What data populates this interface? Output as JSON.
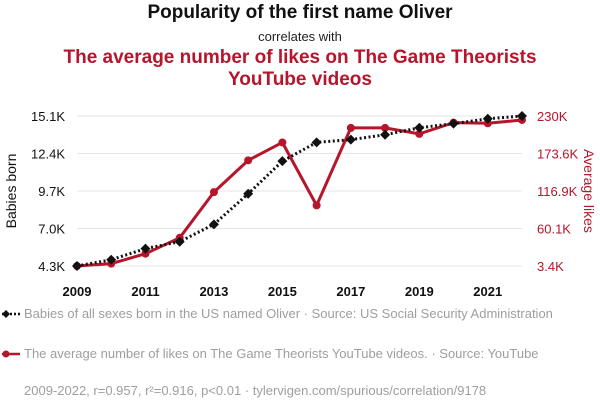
{
  "header": {
    "title": "Popularity of the first name Oliver",
    "subtitle": "correlates with",
    "title2": "The average number of likes on The Game Theorists YouTube videos"
  },
  "legend": {
    "item1": "Babies of all sexes born in the US named Oliver · Source: US Social Security Administration",
    "item2": "The average number of likes on The Game Theorists YouTube videos. · Source: YouTube"
  },
  "footer": "2009-2022, r=0.957, r²=0.916, p<0.01 · tylervigen.com/spurious/correlation/9178",
  "colors": {
    "series1": "#111111",
    "series2": "#b5162b",
    "grid": "#e6e6e6"
  },
  "chart_data": {
    "type": "line",
    "x": [
      2009,
      2010,
      2011,
      2012,
      2013,
      2014,
      2015,
      2016,
      2017,
      2018,
      2019,
      2020,
      2021,
      2022
    ],
    "x_ticks": [
      "2009",
      "2011",
      "2013",
      "2015",
      "2017",
      "2019",
      "2021"
    ],
    "xlim": [
      2009,
      2022
    ],
    "left_axis": {
      "label": "Babies born",
      "ticks": [
        "15.1K",
        "12.4K",
        "9.7K",
        "7.0K",
        "4.3K"
      ],
      "ylim": [
        4300,
        15100
      ]
    },
    "right_axis": {
      "label": "Average likes",
      "ticks": [
        "230K",
        "173.6K",
        "116.9K",
        "60.1K",
        "3.4K"
      ],
      "ylim": [
        3400,
        230000
      ]
    },
    "series": [
      {
        "name": "Babies of all sexes born in the US named Oliver",
        "axis": "left",
        "style": "dotted",
        "marker": "diamond",
        "values": [
          4300,
          4750,
          5550,
          6050,
          7300,
          9500,
          11850,
          13200,
          13400,
          13750,
          14250,
          14550,
          14900,
          15100
        ]
      },
      {
        "name": "The average number of likes on The Game Theorists YouTube videos.",
        "axis": "right",
        "style": "solid",
        "marker": "circle",
        "values": [
          3400,
          7000,
          22000,
          46000,
          115000,
          163000,
          190000,
          95000,
          212000,
          212000,
          203000,
          220000,
          219000,
          224000
        ]
      }
    ]
  }
}
